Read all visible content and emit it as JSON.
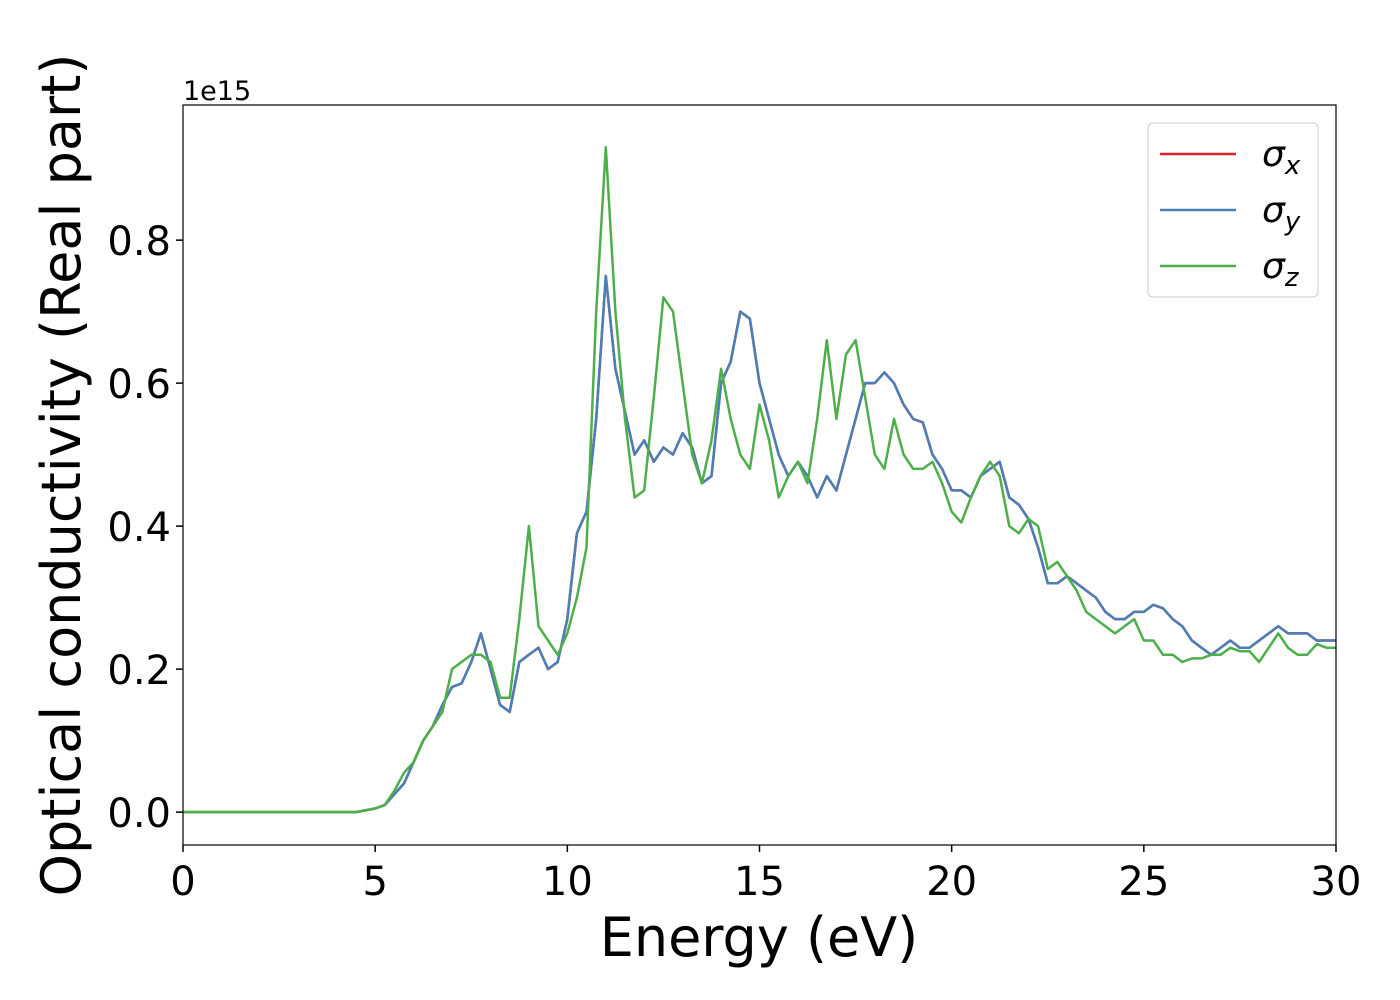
{
  "chart_data": {
    "type": "line",
    "xlabel": "Energy (eV)",
    "ylabel": "Optical conductivity (Real part)",
    "y_offset_label": "1e15",
    "xlim": [
      0,
      30
    ],
    "ylim": [
      -0.046,
      0.989
    ],
    "xticks": [
      0,
      5,
      10,
      15,
      20,
      25,
      30
    ],
    "yticks": [
      {
        "value": 0,
        "label": "0.0"
      },
      0.2,
      0.4,
      0.6,
      0.8
    ],
    "grid": false,
    "legend": "upper right",
    "x": [
      0,
      0.5,
      1,
      1.5,
      2,
      2.5,
      3,
      3.5,
      4,
      4.5,
      5,
      5.25,
      5.5,
      5.75,
      6,
      6.25,
      6.5,
      6.75,
      7,
      7.25,
      7.5,
      7.75,
      8,
      8.25,
      8.5,
      8.75,
      9,
      9.25,
      9.5,
      9.75,
      10,
      10.25,
      10.5,
      10.75,
      11,
      11.25,
      11.5,
      11.75,
      12,
      12.25,
      12.5,
      12.75,
      13,
      13.25,
      13.5,
      13.75,
      14,
      14.25,
      14.5,
      14.75,
      15,
      15.25,
      15.5,
      15.75,
      16,
      16.25,
      16.5,
      16.75,
      17,
      17.25,
      17.5,
      17.75,
      18,
      18.25,
      18.5,
      18.75,
      19,
      19.25,
      19.5,
      19.75,
      20,
      20.25,
      20.5,
      20.75,
      21,
      21.25,
      21.5,
      21.75,
      22,
      22.25,
      22.5,
      22.75,
      23,
      23.25,
      23.5,
      23.75,
      24,
      24.25,
      24.5,
      24.75,
      25,
      25.25,
      25.5,
      25.75,
      26,
      26.25,
      26.5,
      26.75,
      27,
      27.25,
      27.5,
      27.75,
      28,
      28.25,
      28.5,
      28.75,
      29,
      29.25,
      29.5,
      29.75,
      30
    ],
    "series": [
      {
        "name": "σx",
        "color": "#d62728",
        "values": [
          0,
          0,
          0,
          0,
          0,
          0,
          0,
          0,
          0,
          0,
          0.005,
          0.01,
          0.025,
          0.04,
          0.07,
          0.1,
          0.12,
          0.15,
          0.175,
          0.18,
          0.21,
          0.25,
          0.2,
          0.15,
          0.14,
          0.21,
          0.22,
          0.23,
          0.2,
          0.21,
          0.27,
          0.39,
          0.42,
          0.55,
          0.75,
          0.62,
          0.56,
          0.5,
          0.52,
          0.49,
          0.51,
          0.5,
          0.53,
          0.51,
          0.46,
          0.47,
          0.6,
          0.63,
          0.7,
          0.69,
          0.6,
          0.55,
          0.5,
          0.47,
          0.49,
          0.47,
          0.44,
          0.47,
          0.45,
          0.5,
          0.55,
          0.6,
          0.6,
          0.615,
          0.6,
          0.57,
          0.55,
          0.545,
          0.5,
          0.48,
          0.45,
          0.45,
          0.44,
          0.47,
          0.48,
          0.49,
          0.44,
          0.43,
          0.41,
          0.37,
          0.32,
          0.32,
          0.33,
          0.32,
          0.31,
          0.3,
          0.28,
          0.27,
          0.27,
          0.28,
          0.28,
          0.29,
          0.285,
          0.27,
          0.26,
          0.24,
          0.23,
          0.22,
          0.23,
          0.24,
          0.23,
          0.23,
          0.24,
          0.25,
          0.26,
          0.25,
          0.25,
          0.25,
          0.24,
          0.24,
          0.24
        ]
      },
      {
        "name": "σy",
        "color": "#4a7fb5",
        "values": [
          0,
          0,
          0,
          0,
          0,
          0,
          0,
          0,
          0,
          0,
          0.005,
          0.01,
          0.025,
          0.04,
          0.07,
          0.1,
          0.12,
          0.15,
          0.175,
          0.18,
          0.21,
          0.25,
          0.2,
          0.15,
          0.14,
          0.21,
          0.22,
          0.23,
          0.2,
          0.21,
          0.27,
          0.39,
          0.42,
          0.55,
          0.75,
          0.62,
          0.56,
          0.5,
          0.52,
          0.49,
          0.51,
          0.5,
          0.53,
          0.51,
          0.46,
          0.47,
          0.6,
          0.63,
          0.7,
          0.69,
          0.6,
          0.55,
          0.5,
          0.47,
          0.49,
          0.47,
          0.44,
          0.47,
          0.45,
          0.5,
          0.55,
          0.6,
          0.6,
          0.615,
          0.6,
          0.57,
          0.55,
          0.545,
          0.5,
          0.48,
          0.45,
          0.45,
          0.44,
          0.47,
          0.48,
          0.49,
          0.44,
          0.43,
          0.41,
          0.37,
          0.32,
          0.32,
          0.33,
          0.32,
          0.31,
          0.3,
          0.28,
          0.27,
          0.27,
          0.28,
          0.28,
          0.29,
          0.285,
          0.27,
          0.26,
          0.24,
          0.23,
          0.22,
          0.23,
          0.24,
          0.23,
          0.23,
          0.24,
          0.25,
          0.26,
          0.25,
          0.25,
          0.25,
          0.24,
          0.24,
          0.24
        ]
      },
      {
        "name": "σz",
        "color": "#4daf4a",
        "values": [
          0,
          0,
          0,
          0,
          0,
          0,
          0,
          0,
          0,
          0,
          0.005,
          0.01,
          0.03,
          0.055,
          0.07,
          0.1,
          0.12,
          0.14,
          0.2,
          0.21,
          0.22,
          0.22,
          0.21,
          0.16,
          0.16,
          0.27,
          0.4,
          0.26,
          0.24,
          0.22,
          0.25,
          0.3,
          0.37,
          0.7,
          0.93,
          0.7,
          0.55,
          0.44,
          0.45,
          0.58,
          0.72,
          0.7,
          0.6,
          0.5,
          0.46,
          0.52,
          0.62,
          0.55,
          0.5,
          0.48,
          0.57,
          0.52,
          0.44,
          0.47,
          0.49,
          0.46,
          0.55,
          0.66,
          0.55,
          0.64,
          0.66,
          0.58,
          0.5,
          0.48,
          0.55,
          0.5,
          0.48,
          0.48,
          0.49,
          0.46,
          0.42,
          0.405,
          0.44,
          0.47,
          0.49,
          0.47,
          0.4,
          0.39,
          0.41,
          0.4,
          0.34,
          0.35,
          0.33,
          0.31,
          0.28,
          0.27,
          0.26,
          0.25,
          0.26,
          0.27,
          0.24,
          0.24,
          0.22,
          0.22,
          0.21,
          0.215,
          0.215,
          0.22,
          0.22,
          0.23,
          0.225,
          0.225,
          0.21,
          0.23,
          0.25,
          0.23,
          0.22,
          0.22,
          0.235,
          0.23,
          0.23
        ]
      }
    ]
  }
}
